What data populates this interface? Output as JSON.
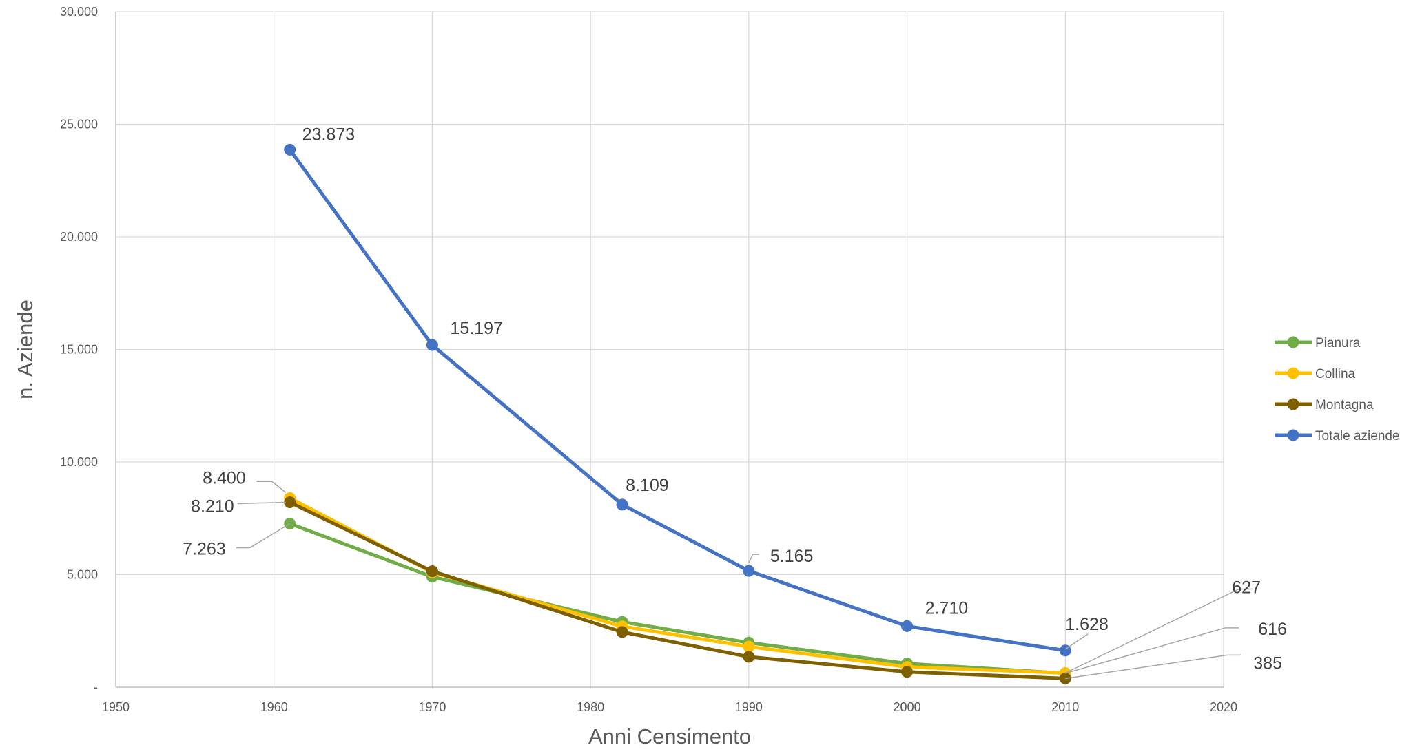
{
  "chart_data": {
    "type": "line",
    "xlabel": "Anni Censimento",
    "ylabel": "n. Aziende",
    "xlim": [
      1950,
      2020
    ],
    "ylim": [
      0,
      30000
    ],
    "x_ticks": [
      1950,
      1960,
      1970,
      1980,
      1990,
      2000,
      2010,
      2020
    ],
    "x_tick_labels": [
      "1950",
      "1960",
      "1970",
      "1980",
      "1990",
      "2000",
      "2010",
      "2020"
    ],
    "y_ticks": [
      0,
      5000,
      10000,
      15000,
      20000,
      25000,
      30000
    ],
    "y_tick_labels": [
      "-",
      "5.000",
      "10.000",
      "15.000",
      "20.000",
      "25.000",
      "30.000"
    ],
    "grid": true,
    "legend_position": "right",
    "x": [
      1961,
      1970,
      1982,
      1990,
      2000,
      2010
    ],
    "series": [
      {
        "name": "Pianura",
        "color": "#70ad47",
        "values": [
          7263,
          4900,
          2900,
          1980,
          1050,
          616
        ]
      },
      {
        "name": "Collina",
        "color": "#ffc000",
        "values": [
          8400,
          5100,
          2700,
          1800,
          900,
          627
        ]
      },
      {
        "name": "Montagna",
        "color": "#7f6000",
        "values": [
          8210,
          5150,
          2450,
          1350,
          680,
          385
        ]
      },
      {
        "name": "Totale aziende",
        "color": "#4472c4",
        "values": [
          23873,
          15197,
          8109,
          5165,
          2710,
          1628
        ]
      }
    ],
    "annotations": [
      {
        "text": "23.873",
        "series": "Totale aziende",
        "x": 1961
      },
      {
        "text": "15.197",
        "series": "Totale aziende",
        "x": 1970
      },
      {
        "text": "8.109",
        "series": "Totale aziende",
        "x": 1982
      },
      {
        "text": "5.165",
        "series": "Totale aziende",
        "x": 1990
      },
      {
        "text": "2.710",
        "series": "Totale aziende",
        "x": 2000
      },
      {
        "text": "1.628",
        "series": "Totale aziende",
        "x": 2010
      },
      {
        "text": "8.400",
        "series": "Collina",
        "x": 1961
      },
      {
        "text": "8.210",
        "series": "Montagna",
        "x": 1961
      },
      {
        "text": "7.263",
        "series": "Pianura",
        "x": 1961
      },
      {
        "text": "627",
        "series": "Collina",
        "x": 2010
      },
      {
        "text": "616",
        "series": "Pianura",
        "x": 2010
      },
      {
        "text": "385",
        "series": "Montagna",
        "x": 2010
      }
    ]
  }
}
